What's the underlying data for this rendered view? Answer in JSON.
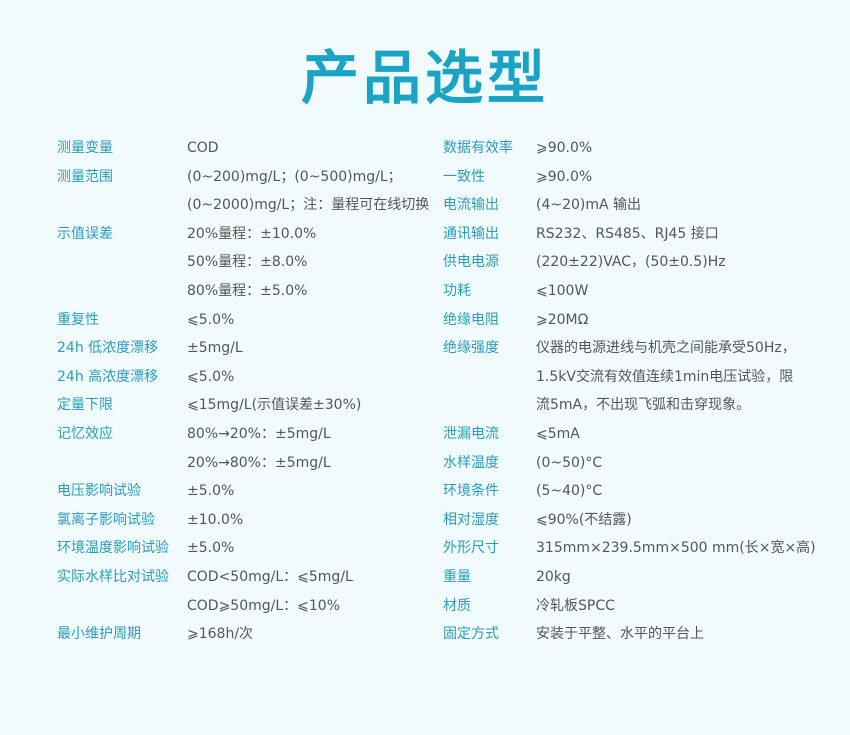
{
  "title": "产品选型",
  "colors": {
    "accent": "#1aa3c4",
    "label": "#2a9dbb",
    "value": "#555555",
    "background": "#f1fbfd"
  },
  "left_rows": [
    {
      "label": "测量变量",
      "value": "COD"
    },
    {
      "label": "测量范围",
      "value": "(0~200)mg/L；(0~500)mg/L；"
    },
    {
      "label": "",
      "value": "(0~2000)mg/L；注：量程可在线切换"
    },
    {
      "label": "示值误差",
      "value": "20%量程：±10.0%"
    },
    {
      "label": "",
      "value": "50%量程：±8.0%"
    },
    {
      "label": "",
      "value": "80%量程：±5.0%"
    },
    {
      "label": "重复性",
      "value": "⩽5.0%"
    },
    {
      "label": "24h 低浓度漂移",
      "value": "±5mg/L"
    },
    {
      "label": "24h 高浓度漂移",
      "value": "⩽5.0%"
    },
    {
      "label": "定量下限",
      "value": "⩽15mg/L(示值误差±30%)"
    },
    {
      "label": "记忆效应",
      "value": "80%→20%：±5mg/L"
    },
    {
      "label": "",
      "value": "20%→80%：±5mg/L"
    },
    {
      "label": "电压影响试验",
      "value": "±5.0%"
    },
    {
      "label": "氯离子影响试验",
      "value": "±10.0%"
    },
    {
      "label": "环境温度影响试验",
      "value": "±5.0%"
    },
    {
      "label": "实际水样比对试验",
      "value": "COD<50mg/L：⩽5mg/L"
    },
    {
      "label": "",
      "value": "COD⩾50mg/L：⩽10%"
    },
    {
      "label": "最小维护周期",
      "value": "⩾168h/次"
    }
  ],
  "right_rows": [
    {
      "label": "数据有效率",
      "value": "⩾90.0%"
    },
    {
      "label": "一致性",
      "value": "⩾90.0%"
    },
    {
      "label": "电流输出",
      "value": "(4~20)mA 输出"
    },
    {
      "label": "通讯输出",
      "value": "RS232、RS485、RJ45 接口"
    },
    {
      "label": "供电电源",
      "value": "(220±22)VAC，(50±0.5)Hz"
    },
    {
      "label": "功耗",
      "value": "⩽100W"
    },
    {
      "label": "绝缘电阻",
      "value": "⩾20MΩ"
    },
    {
      "label": "绝缘强度",
      "value": "仪器的电源进线与机壳之间能承受50Hz，"
    },
    {
      "label": "",
      "value": "1.5kV交流有效值连续1min电压试验，限"
    },
    {
      "label": "",
      "value": "流5mA，不出现飞弧和击穿现象。"
    },
    {
      "label": "泄漏电流",
      "value": "⩽5mA"
    },
    {
      "label": "水样温度",
      "value": "(0~50)°C"
    },
    {
      "label": "环境条件",
      "value": "(5~40)°C"
    },
    {
      "label": "相对湿度",
      "value": "⩽90%(不结露)"
    },
    {
      "label": "外形尺寸",
      "value": "315mm×239.5mm×500 mm(长×宽×高)"
    },
    {
      "label": "重量",
      "value": "20kg"
    },
    {
      "label": "材质",
      "value": "冷轧板SPCC"
    },
    {
      "label": "固定方式",
      "value": "安装于平整、水平的平台上"
    }
  ]
}
